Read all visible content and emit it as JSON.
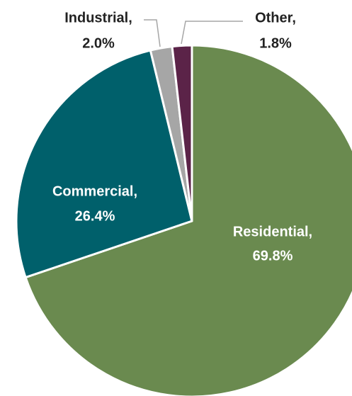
{
  "chart_data": {
    "type": "pie",
    "title": "",
    "series": [
      {
        "slices": [
          {
            "label": "Residential,",
            "percent_label": "69.8%",
            "value": 69.8,
            "color": "#6a8a4f",
            "text_color": "#ffffff"
          },
          {
            "label": "Commercial,",
            "percent_label": "26.4%",
            "value": 26.4,
            "color": "#00606b",
            "text_color": "#ffffff"
          },
          {
            "label": "Industrial,",
            "percent_label": "2.0%",
            "value": 2.0,
            "color": "#a6a6a6",
            "text_color": "#222222"
          },
          {
            "label": "Other,",
            "percent_label": "1.8%",
            "value": 1.8,
            "color": "#5b2348",
            "text_color": "#222222"
          }
        ]
      }
    ],
    "legend": "none",
    "data_labels": "category-and-percent"
  }
}
